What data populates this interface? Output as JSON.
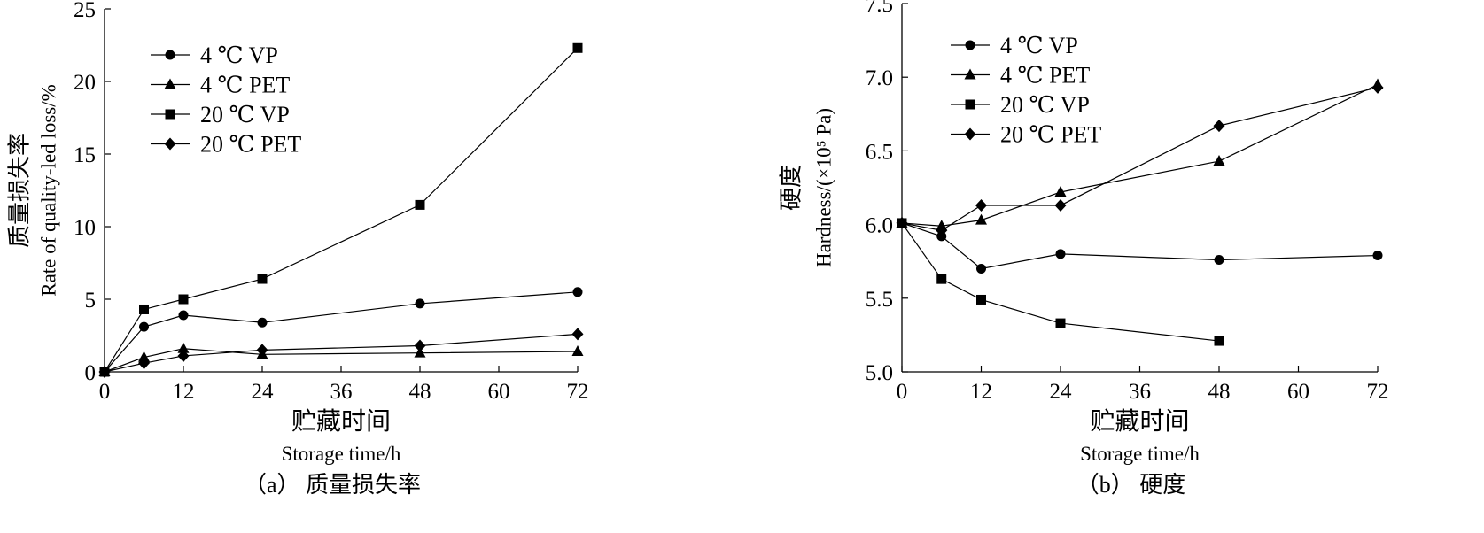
{
  "chart_data": [
    {
      "type": "line",
      "panel_caption": "（a） 质量损失率",
      "xlabel_cn": "贮藏时间",
      "xlabel_en": "Storage time/h",
      "ylabel_cn": "质量损失率",
      "ylabel_en": "Rate of quality-led loss/%",
      "x_ticks": [
        0,
        12,
        24,
        36,
        48,
        60,
        72
      ],
      "y_ticks": [
        0,
        5,
        10,
        15,
        20,
        25
      ],
      "y_tick_labels": [
        "0",
        "5",
        "10",
        "15",
        "20",
        "25"
      ],
      "xlim": [
        0,
        72
      ],
      "ylim": [
        0,
        25
      ],
      "grid": false,
      "legend_position": "top-left",
      "series": [
        {
          "name": "4 ℃  VP",
          "marker": "circle",
          "x": [
            0,
            6,
            12,
            24,
            48,
            72
          ],
          "y": [
            0,
            3.1,
            3.9,
            3.4,
            4.7,
            5.5
          ]
        },
        {
          "name": "4 ℃  PET",
          "marker": "triangle",
          "x": [
            0,
            6,
            12,
            24,
            48,
            72
          ],
          "y": [
            0,
            1.0,
            1.6,
            1.2,
            1.3,
            1.4
          ]
        },
        {
          "name": "20 ℃  VP",
          "marker": "square",
          "x": [
            0,
            6,
            12,
            24,
            48,
            72
          ],
          "y": [
            0,
            4.3,
            5.0,
            6.4,
            11.5,
            22.3
          ]
        },
        {
          "name": "20 ℃  PET",
          "marker": "diamond",
          "x": [
            0,
            6,
            12,
            24,
            48,
            72
          ],
          "y": [
            0,
            0.6,
            1.1,
            1.5,
            1.8,
            2.6
          ]
        }
      ]
    },
    {
      "type": "line",
      "panel_caption": "（b） 硬度",
      "xlabel_cn": "贮藏时间",
      "xlabel_en": "Storage time/h",
      "ylabel_cn": "硬度",
      "ylabel_en": "Hardness/(×10⁵ Pa)",
      "x_ticks": [
        0,
        12,
        24,
        36,
        48,
        60,
        72
      ],
      "y_ticks": [
        5.0,
        5.5,
        6.0,
        6.5,
        7.0,
        7.5
      ],
      "y_tick_labels": [
        "5.0",
        "5.5",
        "6.0",
        "6.5",
        "7.0",
        "7.5"
      ],
      "xlim": [
        0,
        72
      ],
      "ylim": [
        5.0,
        7.5
      ],
      "grid": false,
      "legend_position": "top-left",
      "series": [
        {
          "name": "4 ℃  VP",
          "marker": "circle",
          "x": [
            0,
            6,
            12,
            24,
            48,
            72
          ],
          "y": [
            6.01,
            5.92,
            5.7,
            5.8,
            5.76,
            5.79
          ]
        },
        {
          "name": "4 ℃  PET",
          "marker": "triangle",
          "x": [
            0,
            6,
            12,
            24,
            48,
            72
          ],
          "y": [
            6.01,
            5.99,
            6.03,
            6.22,
            6.43,
            6.95
          ]
        },
        {
          "name": "20 ℃  VP",
          "marker": "square",
          "x": [
            0,
            6,
            12,
            24,
            48
          ],
          "y": [
            6.01,
            5.63,
            5.49,
            5.33,
            5.21
          ]
        },
        {
          "name": "20 ℃  PET",
          "marker": "diamond",
          "x": [
            0,
            6,
            12,
            24,
            48,
            72
          ],
          "y": [
            6.01,
            5.96,
            6.13,
            6.13,
            6.67,
            6.93
          ]
        }
      ]
    }
  ]
}
